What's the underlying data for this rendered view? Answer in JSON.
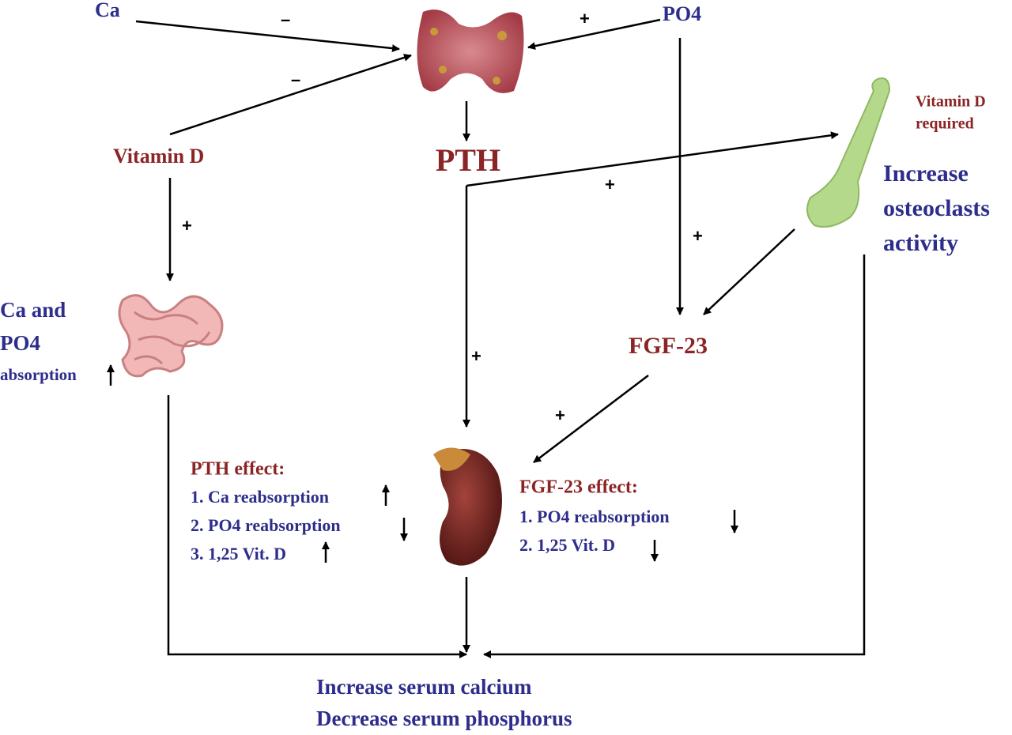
{
  "inputs": {
    "ca": "Ca",
    "po4": "PO4",
    "vitamin_d": "Vitamin D"
  },
  "pth": "PTH",
  "bone": {
    "note": [
      "Vitamin D",
      "required"
    ],
    "effect": [
      "Increase",
      "osteoclasts",
      "activity"
    ]
  },
  "intestine": {
    "effect": [
      "Ca and",
      "PO4",
      "absorption"
    ]
  },
  "fgf23": "FGF-23",
  "pth_effect": {
    "title": "PTH effect:",
    "items": [
      "1. Ca reabsorption",
      "2. PO4 reabsorption",
      "3. 1,25 Vit. D"
    ]
  },
  "fgf23_effect": {
    "title": "FGF-23 effect:",
    "items": [
      "1. PO4 reabsorption",
      "2. 1,25 Vit. D"
    ]
  },
  "signs": [
    "–",
    "–",
    "+",
    "+",
    "+",
    "+",
    "+",
    "+"
  ],
  "outcome": [
    "Increase serum calcium",
    "Decrease serum phosphorus"
  ]
}
